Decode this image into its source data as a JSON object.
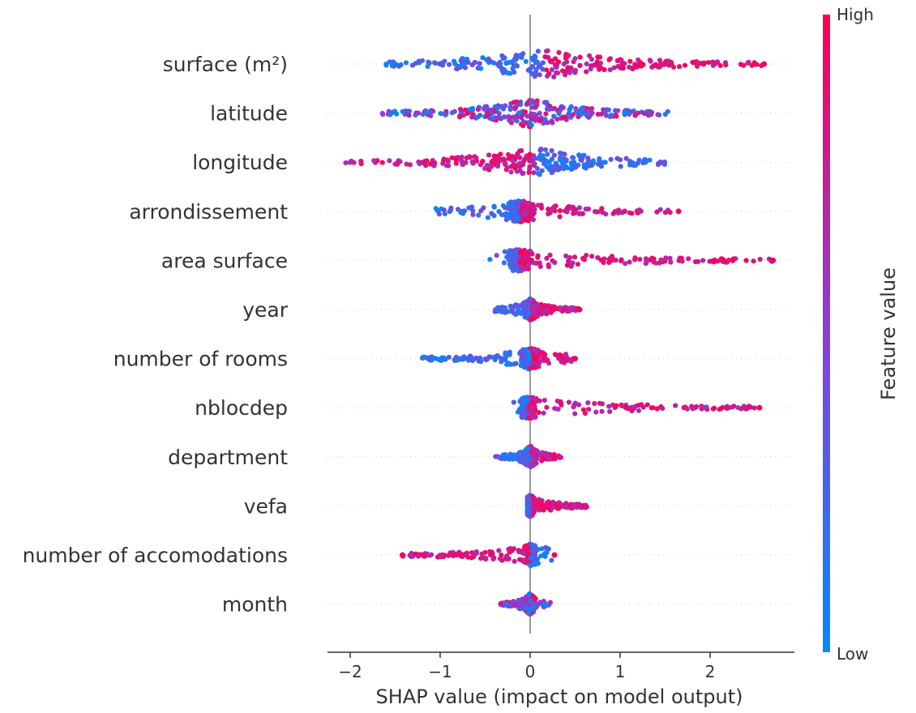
{
  "chart_data": {
    "type": "scatter",
    "subtype": "shap-beeswarm",
    "xlabel": "SHAP value (impact on model output)",
    "x_ticks": [
      -2,
      -1,
      0,
      1,
      2
    ],
    "x_tick_labels": [
      "−2",
      "−1",
      "0",
      "1",
      "2"
    ],
    "xlim": [
      -2.25,
      2.95
    ],
    "features": [
      {
        "name": "surface (m²)",
        "min": -1.6,
        "max": 2.6,
        "center": 0.15,
        "spread": 0.55,
        "pattern": "pos",
        "outliers_high": [
          2.5,
          2.6
        ]
      },
      {
        "name": "latitude",
        "min": -1.65,
        "max": 1.55,
        "center": 0.0,
        "spread": 0.45,
        "pattern": "mixed",
        "outliers_high": []
      },
      {
        "name": "longitude",
        "min": -2.05,
        "max": 1.5,
        "center": 0.05,
        "spread": 0.45,
        "pattern": "neg",
        "outliers_high": []
      },
      {
        "name": "arrondissement",
        "min": -1.05,
        "max": 1.65,
        "center": -0.12,
        "spread": 0.08,
        "pattern": "pos",
        "outliers_high": [
          1.65
        ]
      },
      {
        "name": "area surface",
        "min": -0.5,
        "max": 2.7,
        "center": -0.12,
        "spread": 0.06,
        "pattern": "pos",
        "outliers_high": [
          2.05,
          2.15,
          2.25,
          2.7
        ]
      },
      {
        "name": "year",
        "min": -0.4,
        "max": 0.55,
        "center": 0.0,
        "spread": 0.03,
        "pattern": "pos",
        "outliers_high": [
          0.55
        ]
      },
      {
        "name": "number of rooms",
        "min": -1.2,
        "max": 0.5,
        "center": 0.0,
        "spread": 0.05,
        "pattern": "pos",
        "outliers_high": [
          0.5
        ]
      },
      {
        "name": "nblocdep",
        "min": -0.2,
        "max": 2.55,
        "center": -0.02,
        "spread": 0.04,
        "pattern": "pos",
        "outliers_high": [
          1.07,
          2.55
        ]
      },
      {
        "name": "department",
        "min": -0.4,
        "max": 0.35,
        "center": 0.0,
        "spread": 0.04,
        "pattern": "pos",
        "outliers_high": []
      },
      {
        "name": "vefa",
        "min": -0.03,
        "max": 0.65,
        "center": 0.0,
        "spread": 0.02,
        "pattern": "pos",
        "outliers_high": []
      },
      {
        "name": "number of accomodations",
        "min": -1.42,
        "max": 0.27,
        "center": 0.0,
        "spread": 0.03,
        "pattern": "neg",
        "outliers_high": [
          -1.42,
          0.27
        ]
      },
      {
        "name": "month",
        "min": -0.33,
        "max": 0.23,
        "center": 0.0,
        "spread": 0.03,
        "pattern": "mixed",
        "outliers_high": []
      }
    ],
    "colorbar": {
      "title": "Feature value",
      "high_label": "High",
      "low_label": "Low",
      "high_color": "#ff0052",
      "low_color": "#008bfb"
    }
  }
}
